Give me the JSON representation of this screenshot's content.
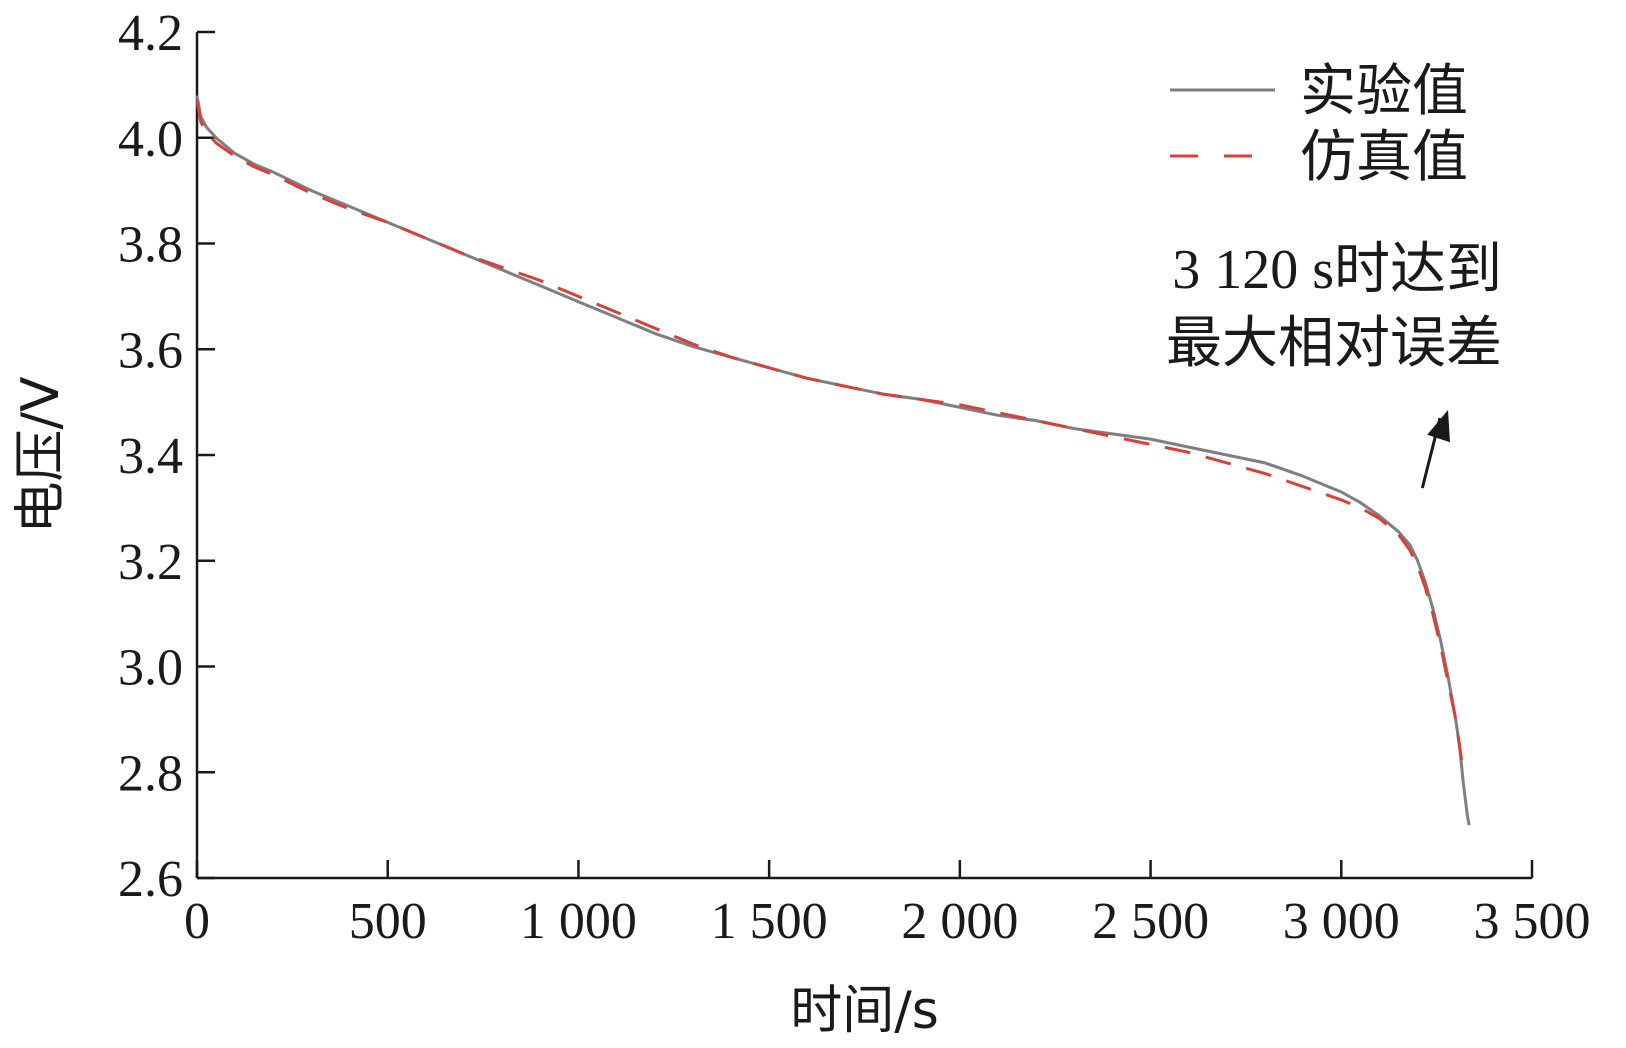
{
  "chart_data": {
    "type": "line",
    "xlabel": "时间/s",
    "ylabel": "电压/V",
    "xlim": [
      0,
      3500
    ],
    "ylim": [
      2.6,
      4.2
    ],
    "grid": false,
    "legend_position": "top-right",
    "x_ticks": [
      0,
      500,
      1000,
      1500,
      2000,
      2500,
      3000,
      3500
    ],
    "x_tick_labels": [
      "0",
      "500",
      "1 000",
      "1 500",
      "2 000",
      "2 500",
      "3 000",
      "3 500"
    ],
    "y_ticks": [
      2.6,
      2.8,
      3.0,
      3.2,
      3.4,
      3.6,
      3.8,
      4.0,
      4.2
    ],
    "y_tick_labels": [
      "2.6",
      "2.8",
      "3.0",
      "3.2",
      "3.4",
      "3.6",
      "3.8",
      "4.0",
      "4.2"
    ],
    "series": [
      {
        "name": "实验值",
        "color": "#7f7f7f",
        "dash": "solid",
        "x": [
          0,
          10,
          25,
          50,
          100,
          150,
          200,
          300,
          400,
          500,
          600,
          700,
          800,
          900,
          1000,
          1100,
          1200,
          1300,
          1400,
          1500,
          1600,
          1700,
          1800,
          1900,
          2000,
          2100,
          2200,
          2300,
          2400,
          2500,
          2600,
          2700,
          2800,
          2900,
          3000,
          3050,
          3100,
          3150,
          3180,
          3200,
          3220,
          3240,
          3260,
          3280,
          3300,
          3310,
          3320,
          3330,
          3335
        ],
        "y": [
          4.08,
          4.04,
          4.02,
          4.0,
          3.97,
          3.95,
          3.935,
          3.9,
          3.87,
          3.84,
          3.81,
          3.78,
          3.75,
          3.72,
          3.69,
          3.66,
          3.63,
          3.605,
          3.585,
          3.565,
          3.545,
          3.53,
          3.515,
          3.505,
          3.49,
          3.475,
          3.465,
          3.45,
          3.44,
          3.43,
          3.415,
          3.4,
          3.385,
          3.36,
          3.33,
          3.31,
          3.285,
          3.255,
          3.23,
          3.2,
          3.16,
          3.11,
          3.05,
          2.98,
          2.9,
          2.85,
          2.78,
          2.72,
          2.7
        ]
      },
      {
        "name": "仿真值",
        "color": "#d9403a",
        "dash": "dashed",
        "x": [
          0,
          10,
          25,
          50,
          100,
          150,
          200,
          300,
          400,
          500,
          600,
          700,
          800,
          900,
          1000,
          1100,
          1200,
          1300,
          1400,
          1500,
          1600,
          1700,
          1800,
          1900,
          2000,
          2100,
          2200,
          2300,
          2400,
          2500,
          2600,
          2700,
          2800,
          2900,
          3000,
          3050,
          3100,
          3150,
          3180,
          3200,
          3220,
          3240,
          3260,
          3280,
          3300,
          3310,
          3320
        ],
        "y": [
          4.07,
          4.03,
          4.01,
          3.99,
          3.965,
          3.945,
          3.93,
          3.895,
          3.865,
          3.84,
          3.81,
          3.78,
          3.755,
          3.73,
          3.7,
          3.67,
          3.64,
          3.61,
          3.585,
          3.565,
          3.545,
          3.53,
          3.515,
          3.505,
          3.495,
          3.48,
          3.465,
          3.45,
          3.435,
          3.42,
          3.405,
          3.385,
          3.365,
          3.34,
          3.315,
          3.3,
          3.28,
          3.25,
          3.22,
          3.19,
          3.15,
          3.1,
          3.04,
          2.97,
          2.9,
          2.85,
          2.8
        ]
      }
    ],
    "annotations": [
      {
        "lines": [
          "3 120 s时达到",
          "最大相对误差"
        ],
        "arrow_from": [
          3050,
          3.33
        ],
        "arrow_to": [
          3250,
          3.49
        ]
      }
    ]
  }
}
